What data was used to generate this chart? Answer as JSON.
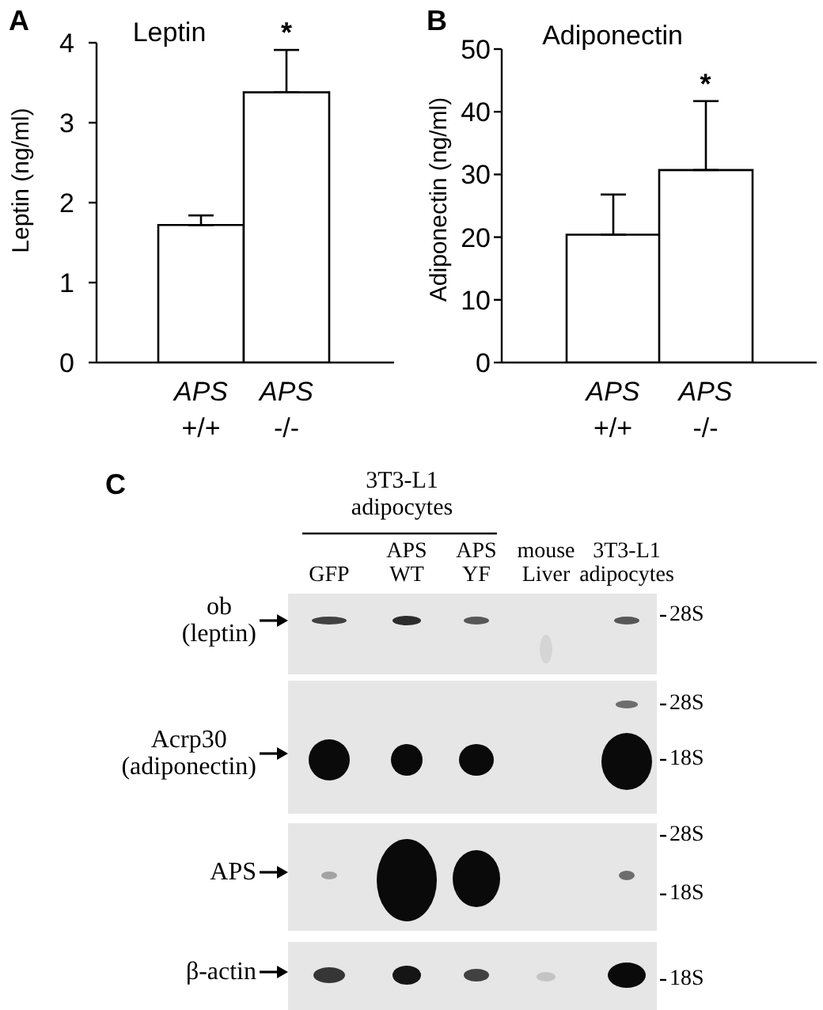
{
  "chart_data": [
    {
      "type": "bar",
      "title": "Leptin",
      "ylabel": "Leptin (ng/ml)",
      "categories": [
        "APS +/+",
        "APS -/-"
      ],
      "values": [
        1.72,
        3.38
      ],
      "errors": [
        [
          1.72,
          1.84
        ],
        [
          3.38,
          3.91
        ]
      ],
      "color": "#ffffff",
      "ylim": [
        0,
        4
      ],
      "yticks": [
        0,
        1,
        2,
        3,
        4
      ],
      "annotations": [
        "A",
        {
          "text": "*",
          "x": "APS -/-",
          "y": 3.91
        }
      ]
    },
    {
      "type": "bar",
      "title": "Adiponectin",
      "ylabel": "Adiponectin (ng/ml)",
      "categories": [
        "APS +/+",
        "APS -/-"
      ],
      "values": [
        20.4,
        30.7
      ],
      "errors": [
        [
          20.4,
          26.8
        ],
        [
          30.7,
          41.7
        ]
      ],
      "color": "#ffffff",
      "ylim": [
        0,
        50
      ],
      "yticks": [
        0,
        10,
        20,
        30,
        40,
        50
      ],
      "annotations": [
        "B",
        {
          "text": "*",
          "x": "APS -/-",
          "y": 41.7
        }
      ]
    },
    {
      "type": "other",
      "categories": [
        "GFP",
        "APS WT",
        "APS YF",
        "mouse Liver",
        "3T3-L1 adipocytes"
      ],
      "y_categories": [
        "ob (leptin)",
        "Acrp30 (adiponectin)",
        "APS",
        "β-actin"
      ],
      "annotations": [
        "C",
        "3T3-L1 adipocytes",
        "28S",
        "28S",
        "18S",
        "28S",
        "18S",
        "18S"
      ]
    }
  ]
}
